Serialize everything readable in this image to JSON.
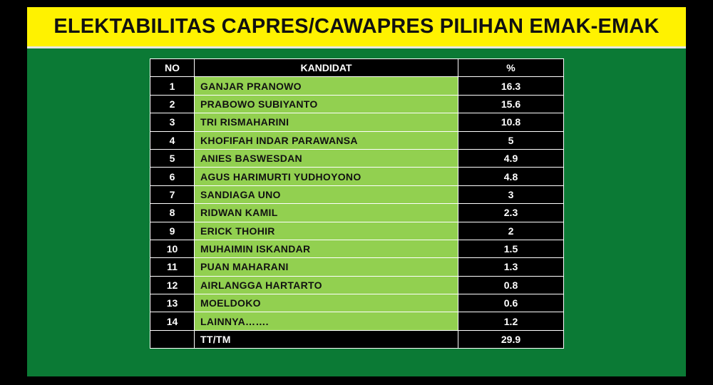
{
  "title": "ELEKTABILITAS CAPRES/CAWAPRES PILIHAN EMAK-EMAK",
  "colors": {
    "title_bg": "#fff200",
    "slide_bg": "#0b7a35",
    "name_cell_bg": "#92d050",
    "dark_cell_bg": "#000000"
  },
  "chart_data": {
    "type": "table",
    "title": "ELEKTABILITAS CAPRES/CAWAPRES PILIHAN EMAK-EMAK",
    "columns": [
      "NO",
      "KANDIDAT",
      "%"
    ],
    "rows": [
      {
        "no": "1",
        "name": "GANJAR PRANOWO",
        "pct": "16.3"
      },
      {
        "no": "2",
        "name": "PRABOWO SUBIYANTO",
        "pct": "15.6"
      },
      {
        "no": "3",
        "name": "TRI RISMAHARINI",
        "pct": "10.8"
      },
      {
        "no": "4",
        "name": "KHOFIFAH INDAR PARAWANSA",
        "pct": "5"
      },
      {
        "no": "5",
        "name": "ANIES BASWESDAN",
        "pct": "4.9"
      },
      {
        "no": "6",
        "name": "AGUS HARIMURTI YUDHOYONO",
        "pct": "4.8"
      },
      {
        "no": "7",
        "name": "SANDIAGA UNO",
        "pct": "3"
      },
      {
        "no": "8",
        "name": "RIDWAN KAMIL",
        "pct": "2.3"
      },
      {
        "no": "9",
        "name": "ERICK THOHIR",
        "pct": "2"
      },
      {
        "no": "10",
        "name": "MUHAIMIN ISKANDAR",
        "pct": "1.5"
      },
      {
        "no": "11",
        "name": "PUAN MAHARANI",
        "pct": "1.3"
      },
      {
        "no": "12",
        "name": "AIRLANGGA HARTARTO",
        "pct": "0.8"
      },
      {
        "no": "13",
        "name": "MOELDOKO",
        "pct": "0.6"
      },
      {
        "no": "14",
        "name": "LAINNYA…….",
        "pct": "1.2"
      },
      {
        "no": "",
        "name": "TT/TM",
        "pct": "29.9"
      }
    ]
  }
}
